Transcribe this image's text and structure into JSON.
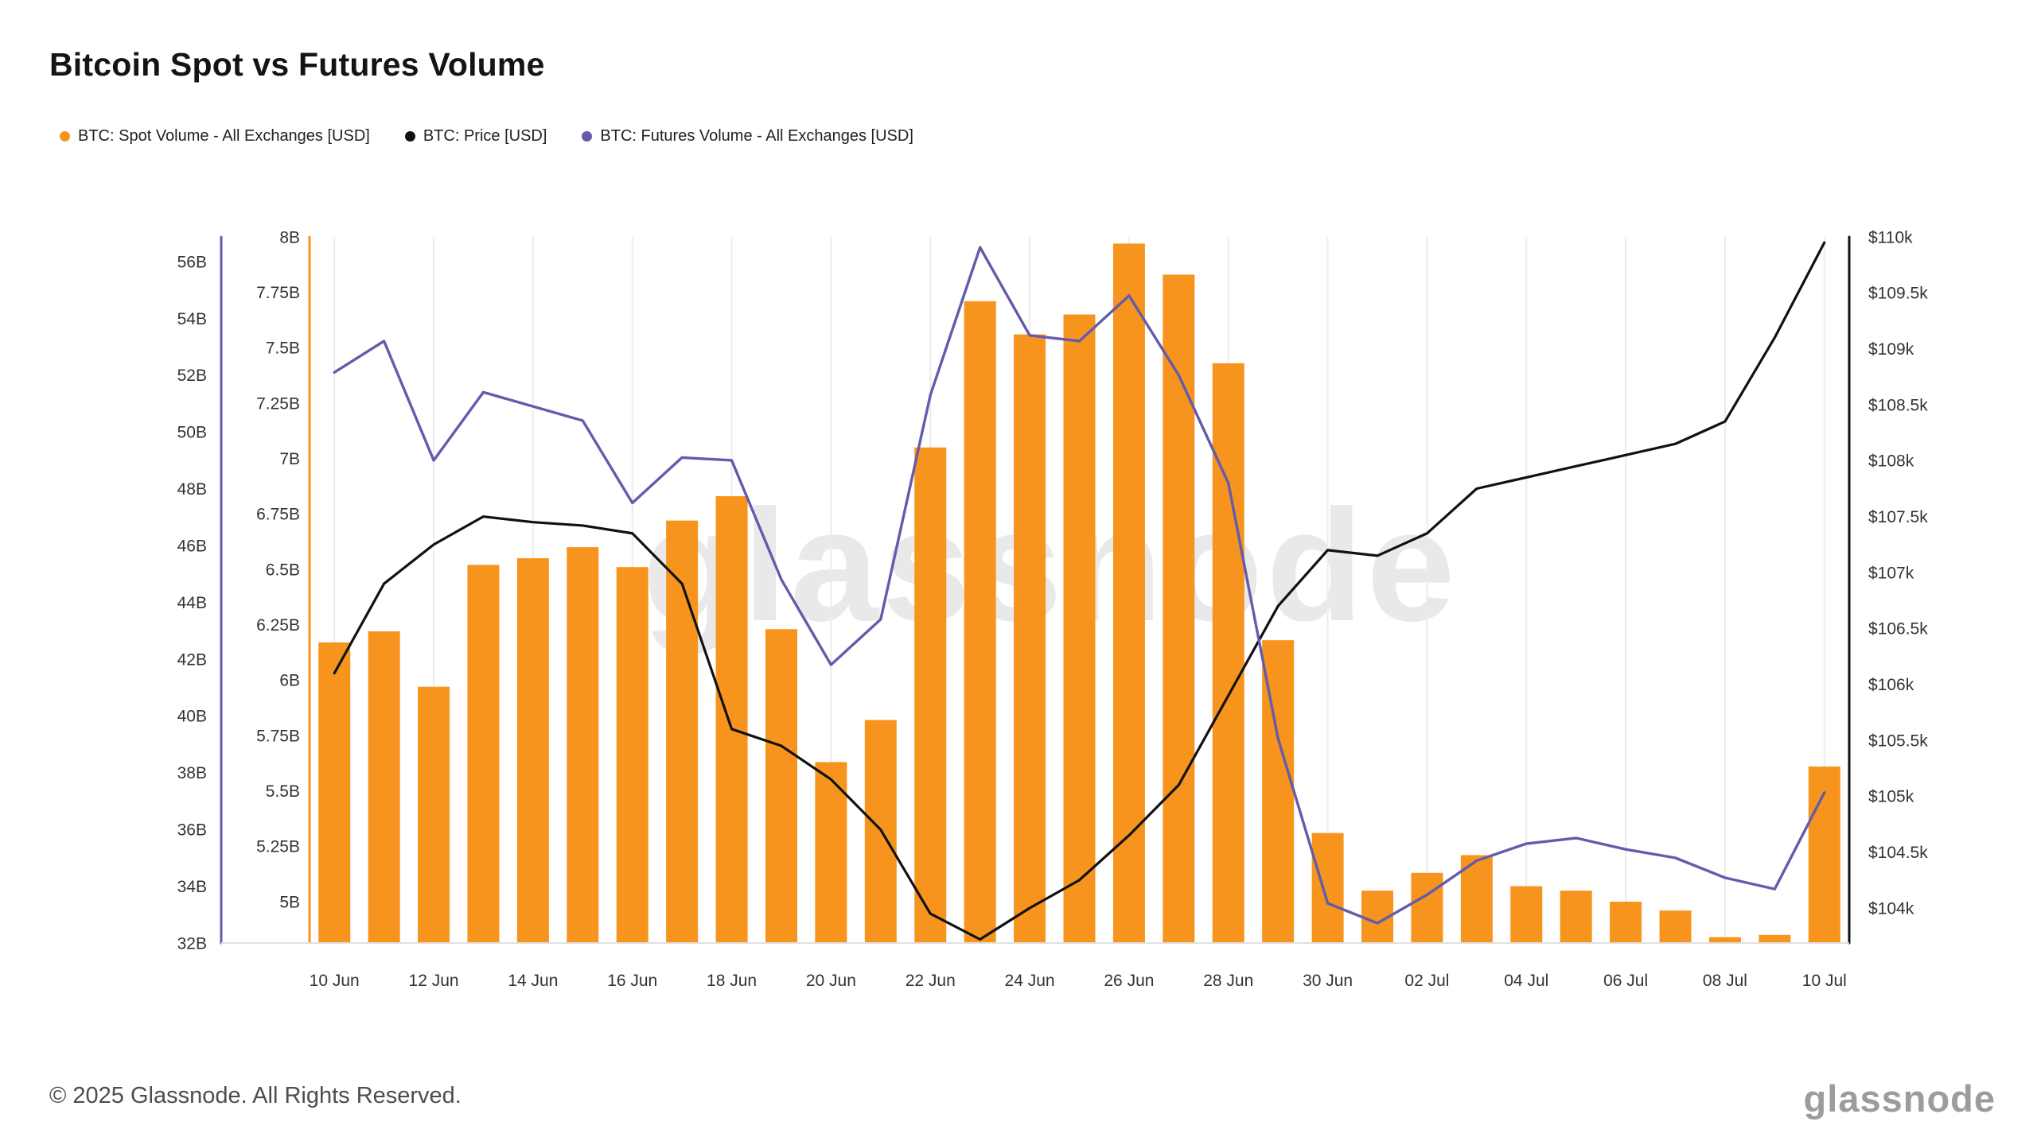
{
  "page": {
    "title": "Bitcoin Spot vs Futures Volume",
    "footer": "© 2025 Glassnode. All Rights Reserved.",
    "brand_logo": "glassnode",
    "watermark": "glassnode"
  },
  "colors": {
    "spot": "#f7941d",
    "price": "#111111",
    "futures": "#635bab",
    "grid": "#ececec",
    "baseline": "#e0e0e0",
    "axis_text": "#333333",
    "watermark": "#e9e9e9"
  },
  "legend": [
    {
      "id": "spot",
      "label": "BTC: Spot Volume - All Exchanges [USD]",
      "color": "#f7941d"
    },
    {
      "id": "price",
      "label": "BTC: Price [USD]",
      "color": "#111111"
    },
    {
      "id": "futures",
      "label": "BTC: Futures Volume - All Exchanges [USD]",
      "color": "#635bab"
    }
  ],
  "chart_data": {
    "type": "combo",
    "title": "Bitcoin Spot vs Futures Volume",
    "grid": "vertical-only",
    "legend_position": "top-left",
    "x": [
      "10 Jun",
      "11 Jun",
      "12 Jun",
      "13 Jun",
      "14 Jun",
      "15 Jun",
      "16 Jun",
      "17 Jun",
      "18 Jun",
      "19 Jun",
      "20 Jun",
      "21 Jun",
      "22 Jun",
      "23 Jun",
      "24 Jun",
      "25 Jun",
      "26 Jun",
      "27 Jun",
      "28 Jun",
      "29 Jun",
      "30 Jun",
      "01 Jul",
      "02 Jul",
      "03 Jul",
      "04 Jul",
      "05 Jul",
      "06 Jul",
      "07 Jul",
      "08 Jul",
      "09 Jul",
      "10 Jul"
    ],
    "x_tick_indices": [
      0,
      2,
      4,
      6,
      8,
      10,
      12,
      14,
      16,
      18,
      20,
      22,
      24,
      26,
      28,
      30
    ],
    "series": [
      {
        "id": "spot",
        "name": "BTC: Spot Volume - All Exchanges [USD]",
        "type": "bar",
        "axis": "spot",
        "unit": "billion USD",
        "color": "#f7941d",
        "values": [
          6.17,
          6.22,
          5.97,
          6.52,
          6.55,
          6.6,
          6.51,
          6.72,
          6.83,
          6.23,
          5.63,
          5.82,
          7.05,
          7.71,
          7.56,
          7.65,
          7.97,
          7.83,
          7.43,
          6.18,
          5.31,
          5.05,
          5.13,
          5.21,
          5.07,
          5.05,
          5.0,
          4.96,
          4.84,
          4.85,
          5.61
        ]
      },
      {
        "id": "price",
        "name": "BTC: Price [USD]",
        "type": "line",
        "axis": "price",
        "unit": "thousand USD",
        "color": "#111111",
        "values": [
          106.1,
          106.9,
          107.25,
          107.5,
          107.45,
          107.42,
          107.35,
          106.9,
          105.6,
          105.45,
          105.15,
          104.7,
          103.95,
          103.72,
          104.0,
          104.25,
          104.65,
          105.1,
          105.9,
          106.7,
          107.2,
          107.15,
          107.35,
          107.75,
          107.85,
          107.95,
          108.05,
          108.15,
          108.35,
          109.1,
          109.95
        ]
      },
      {
        "id": "futures",
        "name": "BTC: Futures Volume - All Exchanges [USD]",
        "type": "line",
        "axis": "futures",
        "unit": "billion USD",
        "color": "#635bab",
        "values": [
          52.1,
          53.2,
          49.0,
          51.4,
          50.9,
          50.4,
          47.5,
          49.1,
          49.0,
          44.8,
          41.8,
          43.4,
          51.3,
          56.5,
          53.4,
          53.2,
          54.8,
          52.0,
          48.2,
          39.2,
          33.4,
          32.7,
          33.7,
          34.9,
          35.5,
          35.7,
          35.3,
          35.0,
          34.3,
          33.9,
          37.3
        ]
      }
    ],
    "axes": {
      "futures": {
        "position": "left-outer",
        "min": 32,
        "max": 56,
        "ticks": [
          {
            "v": 56,
            "l": "56B"
          },
          {
            "v": 54,
            "l": "54B"
          },
          {
            "v": 52,
            "l": "52B"
          },
          {
            "v": 50,
            "l": "50B"
          },
          {
            "v": 48,
            "l": "48B"
          },
          {
            "v": 46,
            "l": "46B"
          },
          {
            "v": 44,
            "l": "44B"
          },
          {
            "v": 42,
            "l": "42B"
          },
          {
            "v": 40,
            "l": "40B"
          },
          {
            "v": 38,
            "l": "38B"
          },
          {
            "v": 36,
            "l": "36B"
          },
          {
            "v": 34,
            "l": "34B"
          },
          {
            "v": 32,
            "l": "32B"
          }
        ]
      },
      "spot": {
        "position": "left-inner",
        "min": 5,
        "max": 8,
        "ticks": [
          {
            "v": 8,
            "l": "8B"
          },
          {
            "v": 7.75,
            "l": "7.75B"
          },
          {
            "v": 7.5,
            "l": "7.5B"
          },
          {
            "v": 7.25,
            "l": "7.25B"
          },
          {
            "v": 7,
            "l": "7B"
          },
          {
            "v": 6.75,
            "l": "6.75B"
          },
          {
            "v": 6.5,
            "l": "6.5B"
          },
          {
            "v": 6.25,
            "l": "6.25B"
          },
          {
            "v": 6,
            "l": "6B"
          },
          {
            "v": 5.75,
            "l": "5.75B"
          },
          {
            "v": 5.5,
            "l": "5.5B"
          },
          {
            "v": 5.25,
            "l": "5.25B"
          },
          {
            "v": 5,
            "l": "5B"
          }
        ]
      },
      "price": {
        "position": "right",
        "min": 104,
        "max": 110,
        "ticks": [
          {
            "v": 110,
            "l": "$110k"
          },
          {
            "v": 109.5,
            "l": "$109.5k"
          },
          {
            "v": 109,
            "l": "$109k"
          },
          {
            "v": 108.5,
            "l": "$108.5k"
          },
          {
            "v": 108,
            "l": "$108k"
          },
          {
            "v": 107.5,
            "l": "$107.5k"
          },
          {
            "v": 107,
            "l": "$107k"
          },
          {
            "v": 106.5,
            "l": "$106.5k"
          },
          {
            "v": 106,
            "l": "$106k"
          },
          {
            "v": 105.5,
            "l": "$105.5k"
          },
          {
            "v": 105,
            "l": "$105k"
          },
          {
            "v": 104.5,
            "l": "$104.5k"
          },
          {
            "v": 104,
            "l": "$104k"
          }
        ]
      }
    }
  }
}
